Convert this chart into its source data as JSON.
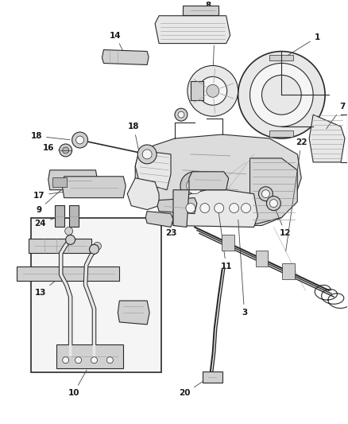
{
  "background_color": "#ffffff",
  "fig_width": 4.38,
  "fig_height": 5.33,
  "dpi": 100,
  "line_color": "#2a2a2a",
  "label_color": "#1a1a1a",
  "font_size": 7.5,
  "leader_color": "#444444",
  "fill_light": "#e8e8e8",
  "fill_mid": "#d0d0d0",
  "fill_dark": "#b8b8b8",
  "fill_white": "#f5f5f5"
}
